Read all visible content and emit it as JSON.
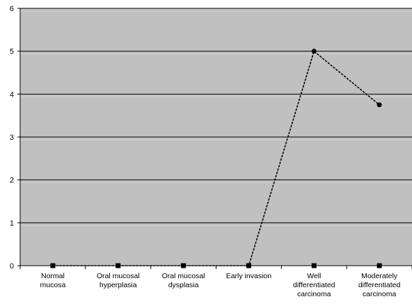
{
  "chart_data": {
    "type": "line",
    "title": "",
    "xlabel": "",
    "ylabel": "",
    "categories": [
      [
        "Normal",
        "mucosa"
      ],
      [
        "Oral mucosal",
        "hyperplasia"
      ],
      [
        "Oral mucosal",
        "dysplasia"
      ],
      [
        "Early invasion"
      ],
      [
        "Well",
        "differentiated",
        "carcinoma"
      ],
      [
        "Moderately",
        "differentiated",
        "carcinoma"
      ]
    ],
    "ylim": [
      0,
      6
    ],
    "yticks": [
      0,
      1,
      2,
      3,
      4,
      5,
      6
    ],
    "grid": true,
    "legend": "none",
    "series": [
      {
        "values": [
          0,
          0,
          0,
          0,
          5,
          3.75
        ],
        "line_style": "dotted",
        "color": "#000000"
      }
    ],
    "baseline_markers": [
      0,
      0,
      0,
      0,
      0,
      0
    ],
    "colors": {
      "plot_background": "#c0c0c0",
      "gridline": "#000000",
      "marker": "#000000"
    }
  }
}
